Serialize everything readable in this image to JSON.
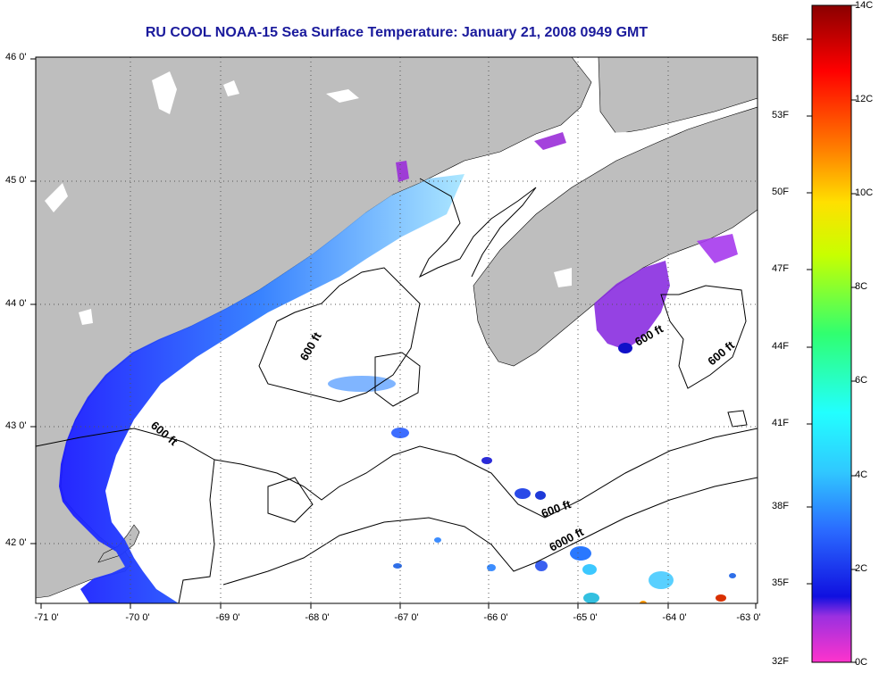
{
  "title": "RU COOL  NOAA-15  Sea Surface Temperature:  January 21, 2008 0949 GMT",
  "map": {
    "longitude_ticks": [
      "-71 0'",
      "-70 0'",
      "-69 0'",
      "-68 0'",
      "-67 0'",
      "-66 0'",
      "-65 0'",
      "-64 0'",
      "-63 0'"
    ],
    "latitude_ticks": [
      "46 0'",
      "45 0'",
      "44 0'",
      "43 0'",
      "42 0'"
    ],
    "contour_labels": [
      "600 ft",
      "600 ft",
      "600 ft",
      "600 ft",
      "600 ft",
      "6000 ft"
    ],
    "colors": {
      "land": "#bebebe",
      "water_no_data": "#ffffff",
      "contour": "#000000",
      "grid": "#555555"
    }
  },
  "colorbar": {
    "fahrenheit_labels": [
      "56F",
      "53F",
      "50F",
      "47F",
      "44F",
      "41F",
      "38F",
      "35F",
      "32F"
    ],
    "celsius_labels": [
      "14C",
      "12C",
      "10C",
      "8C",
      "6C",
      "4C",
      "2C",
      "0C"
    ],
    "range_celsius": [
      0,
      14
    ]
  }
}
